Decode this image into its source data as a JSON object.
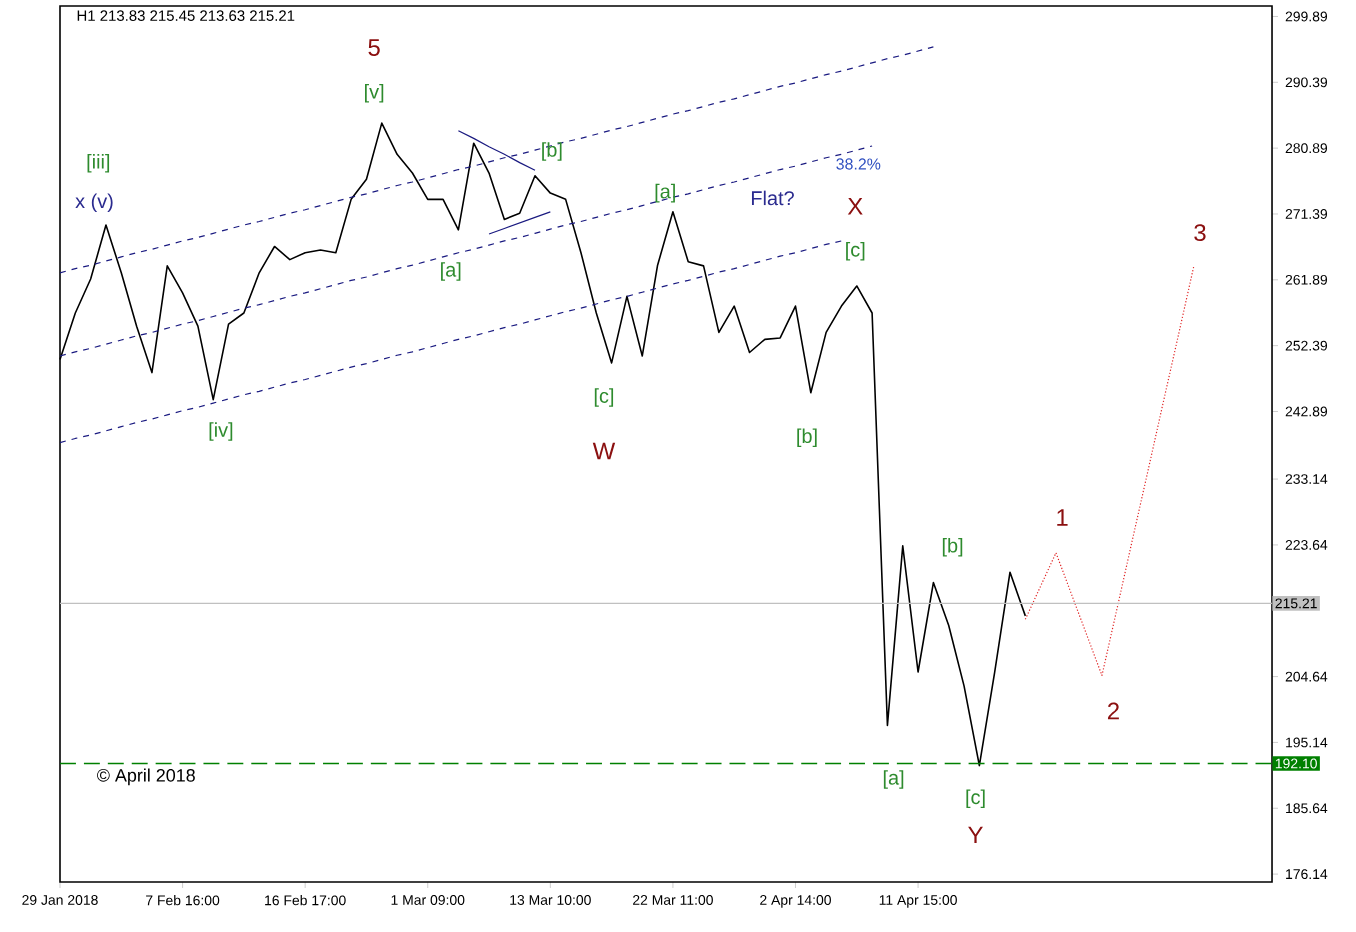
{
  "chart_data": {
    "type": "line",
    "title": "H1 213.83 215.45 213.63 215.21",
    "categories": [
      "29 Jan 2018",
      null,
      null,
      null,
      null,
      null,
      null,
      null,
      "7 Feb 16:00",
      null,
      null,
      null,
      null,
      null,
      null,
      null,
      "16 Feb 17:00",
      null,
      null,
      null,
      null,
      null,
      null,
      null,
      "1 Mar 09:00",
      null,
      null,
      null,
      null,
      null,
      null,
      null,
      "13 Mar 10:00",
      null,
      null,
      null,
      null,
      null,
      null,
      null,
      "22 Mar 11:00",
      null,
      null,
      null,
      null,
      null,
      null,
      null,
      "2 Apr 14:00",
      null,
      null,
      null,
      null,
      null,
      null,
      null,
      "11 Apr 15:00",
      null,
      null,
      null,
      null,
      null,
      null,
      null,
      null,
      null,
      null,
      null,
      null,
      null,
      null,
      null,
      null,
      null,
      null,
      null,
      null,
      null,
      null,
      null
    ],
    "ylim": [
      175.0,
      301.4
    ],
    "yticks": [
      299.89,
      290.39,
      280.89,
      271.39,
      261.89,
      252.39,
      242.89,
      233.14,
      223.64,
      204.64,
      195.14,
      185.64,
      176.14
    ],
    "series": [
      {
        "color": "#000000",
        "line_style": "solid",
        "values": [
          250.4,
          257.1,
          262.0,
          269.8,
          262.9,
          255.2,
          248.5,
          263.9,
          260.0,
          255.2,
          244.6,
          255.5,
          257.1,
          262.9,
          266.7,
          264.8,
          265.8,
          266.2,
          265.8,
          273.5,
          276.4,
          284.5,
          280.0,
          277.3,
          273.5,
          273.5,
          269.1,
          281.6,
          277.3,
          270.6,
          271.5,
          276.9,
          274.4,
          273.5,
          265.8,
          257.1,
          249.9,
          259.5,
          250.9,
          264.0,
          271.7,
          264.5,
          263.9,
          254.3,
          258.1,
          251.4,
          253.3,
          253.5,
          258.1,
          245.6,
          254.3,
          258.1,
          261.0,
          257.1,
          197.6,
          223.5,
          205.3,
          218.2,
          212.0,
          203.3,
          191.8,
          205.3,
          219.7,
          213.4,
          null,
          null,
          null,
          null,
          null,
          null,
          null,
          null,
          null,
          null,
          null,
          null,
          null,
          null,
          null,
          null
        ]
      },
      {
        "color": "#e02020",
        "line_style": "dotted",
        "values": [
          null,
          null,
          null,
          null,
          null,
          null,
          null,
          null,
          null,
          null,
          null,
          null,
          null,
          null,
          null,
          null,
          null,
          null,
          null,
          null,
          null,
          null,
          null,
          null,
          null,
          null,
          null,
          null,
          null,
          null,
          null,
          null,
          null,
          null,
          null,
          null,
          null,
          null,
          null,
          null,
          null,
          null,
          null,
          null,
          null,
          null,
          null,
          null,
          null,
          null,
          null,
          null,
          null,
          null,
          null,
          null,
          null,
          null,
          null,
          null,
          null,
          null,
          null,
          212.9,
          217.7,
          222.5,
          216.6,
          210.7,
          204.8,
          214.6,
          224.5,
          234.3,
          244.2,
          254.0,
          263.9,
          null,
          null,
          null,
          null,
          null
        ]
      },
      {
        "color": "#1a1a80",
        "line_style": "dashed",
        "values": [
          262.9,
          263.5,
          264.0,
          264.6,
          265.2,
          265.8,
          266.3,
          266.9,
          267.5,
          268.0,
          268.6,
          269.2,
          269.8,
          270.3,
          270.9,
          271.5,
          272.0,
          272.6,
          273.2,
          273.8,
          274.3,
          274.9,
          275.5,
          276.0,
          276.6,
          277.2,
          277.8,
          278.3,
          278.9,
          279.5,
          280.0,
          280.6,
          281.2,
          281.8,
          282.3,
          282.9,
          283.5,
          284.0,
          284.6,
          285.2,
          285.8,
          286.3,
          286.9,
          287.5,
          288.0,
          288.6,
          289.2,
          289.8,
          290.3,
          290.9,
          291.5,
          292.0,
          292.6,
          293.2,
          293.8,
          294.3,
          294.9,
          295.5,
          null,
          null,
          null,
          null,
          null,
          null,
          null,
          null,
          null,
          null,
          null,
          null,
          null,
          null,
          null,
          null,
          null,
          null,
          null,
          null,
          null,
          null
        ]
      },
      {
        "color": "#1a1a80",
        "line_style": "dashed",
        "values": [
          250.9,
          251.5,
          252.0,
          252.6,
          253.2,
          253.8,
          254.3,
          254.9,
          255.5,
          256.0,
          256.6,
          257.2,
          257.8,
          258.3,
          258.9,
          259.5,
          260.0,
          260.6,
          261.2,
          261.8,
          262.3,
          262.9,
          263.5,
          264.0,
          264.6,
          265.2,
          265.8,
          266.3,
          266.9,
          267.5,
          268.0,
          268.6,
          269.2,
          269.8,
          270.3,
          270.9,
          271.5,
          272.0,
          272.6,
          273.2,
          273.8,
          274.3,
          274.9,
          275.5,
          276.0,
          276.6,
          277.2,
          277.8,
          278.3,
          278.9,
          279.5,
          280.0,
          280.6,
          281.2,
          null,
          null,
          null,
          null,
          null,
          null,
          null,
          null,
          null,
          null,
          null,
          null,
          null,
          null,
          null,
          null,
          null,
          null,
          null,
          null,
          null,
          null,
          null,
          null,
          null,
          null
        ]
      },
      {
        "color": "#1a1a80",
        "line_style": "dashed",
        "values": [
          238.4,
          239.0,
          239.5,
          240.1,
          240.7,
          241.3,
          241.8,
          242.4,
          243.0,
          243.5,
          244.1,
          244.7,
          245.3,
          245.8,
          246.4,
          247.0,
          247.5,
          248.1,
          248.7,
          249.3,
          249.8,
          250.4,
          251.0,
          251.5,
          252.1,
          252.7,
          253.3,
          253.8,
          254.4,
          255.0,
          255.5,
          256.1,
          256.7,
          257.3,
          257.8,
          258.4,
          259.0,
          259.5,
          260.1,
          260.7,
          261.3,
          261.8,
          262.4,
          263.0,
          263.5,
          264.1,
          264.7,
          265.3,
          265.8,
          266.4,
          267.0,
          267.5,
          null,
          null,
          null,
          null,
          null,
          null,
          null,
          null,
          null,
          null,
          null,
          null,
          null,
          null,
          null,
          null,
          null,
          null,
          null,
          null,
          null,
          null,
          null,
          null,
          null,
          null,
          null,
          null
        ]
      },
      {
        "color": "#1a1a80",
        "line_style": "solid",
        "values": [
          null,
          null,
          null,
          null,
          null,
          null,
          null,
          null,
          null,
          null,
          null,
          null,
          null,
          null,
          null,
          null,
          null,
          null,
          null,
          null,
          null,
          null,
          null,
          null,
          null,
          null,
          283.4,
          282.3,
          281.1,
          280.0,
          278.8,
          277.7,
          null,
          null,
          null,
          null,
          null,
          null,
          null,
          null,
          null,
          null,
          null,
          null,
          null,
          null,
          null,
          null,
          null,
          null,
          null,
          null,
          null,
          null,
          null,
          null,
          null,
          null,
          null,
          null,
          null,
          null,
          null,
          null,
          null,
          null,
          null,
          null,
          null,
          null,
          null,
          null,
          null,
          null,
          null,
          null,
          null,
          null,
          null,
          null
        ]
      },
      {
        "color": "#1a1a80",
        "line_style": "solid",
        "values": [
          null,
          null,
          null,
          null,
          null,
          null,
          null,
          null,
          null,
          null,
          null,
          null,
          null,
          null,
          null,
          null,
          null,
          null,
          null,
          null,
          null,
          null,
          null,
          null,
          null,
          null,
          null,
          null,
          268.5,
          269.3,
          270.1,
          270.9,
          271.7,
          null,
          null,
          null,
          null,
          null,
          null,
          null,
          null,
          null,
          null,
          null,
          null,
          null,
          null,
          null,
          null,
          null,
          null,
          null,
          null,
          null,
          null,
          null,
          null,
          null,
          null,
          null,
          null,
          null,
          null,
          null,
          null,
          null,
          null,
          null,
          null,
          null,
          null,
          null,
          null,
          null,
          null,
          null,
          null,
          null,
          null,
          null
        ]
      }
    ],
    "ref_lines": [
      {
        "axis": "y",
        "value": 192.1,
        "label": "192.10",
        "color": "#008000",
        "line_style": "dashed"
      },
      {
        "axis": "y",
        "value": 215.21,
        "label": "215.21",
        "color": "#c0c0c0",
        "line_style": "solid"
      }
    ],
    "annotations": [
      "[iii]",
      "x (v)",
      "[iv]",
      "5",
      "[v]",
      "[a]",
      "[b]",
      "[c]",
      "W",
      "[a]",
      "Flat?",
      "38.2%",
      "X",
      "[c]",
      "[b]",
      "[a]",
      "[b]",
      "[c]",
      "Y",
      "1",
      "2",
      "3",
      "© April 2018"
    ]
  }
}
